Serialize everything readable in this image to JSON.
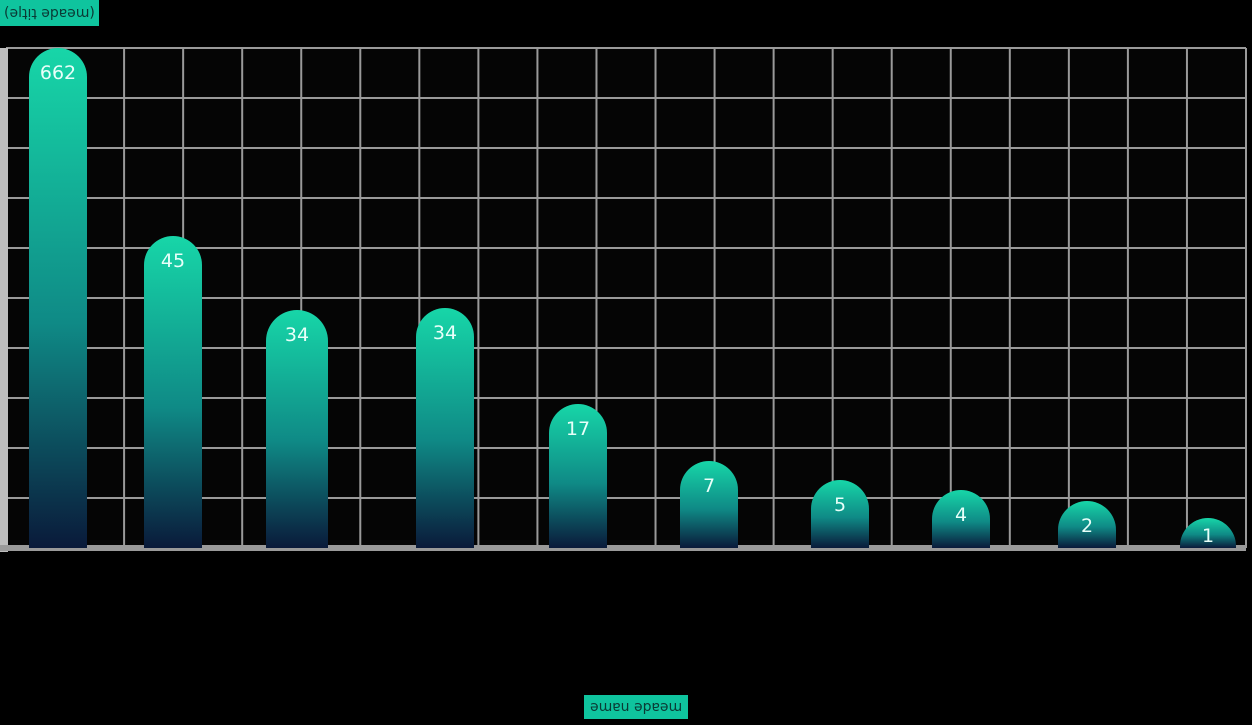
{
  "chart_data": {
    "type": "bar",
    "title": "(ǝlʇᴉʇ ǝpɐǝɯ)",
    "xlabel": "ǝɯɐu ǝpɐǝɯ",
    "ylabel": "",
    "categories": [
      "",
      "",
      "",
      "",
      "",
      "",
      "",
      "",
      "",
      ""
    ],
    "values": [
      662,
      45,
      34,
      34,
      17,
      7,
      5,
      4,
      2,
      1
    ],
    "grid": true,
    "legend": "none",
    "colors": {
      "bar_top": "#17d6a8",
      "bar_bottom": "#0a1a3a",
      "grid": "#9a9a9a",
      "background": "#000000",
      "accent": "#0fc49e"
    }
  }
}
